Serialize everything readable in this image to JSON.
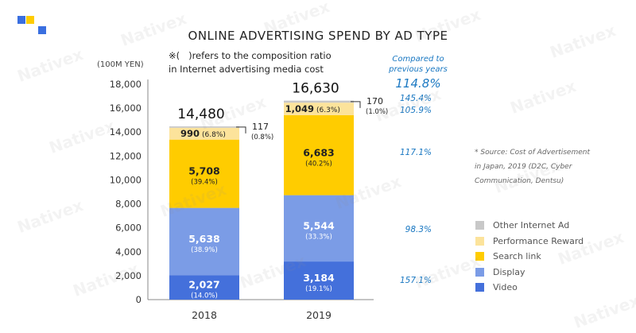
{
  "watermark": "Nativex",
  "chart_data": {
    "type": "bar",
    "stacked": true,
    "title": "ONLINE ADVERTISING SPEND BY AD TYPE",
    "ylabel": "(100M YEN)",
    "ylim": [
      0,
      18000
    ],
    "y_ticks": [
      "0",
      "2,000",
      "4,000",
      "6,000",
      "8,000",
      "10,000",
      "12,000",
      "14,000",
      "16,000",
      "18,000"
    ],
    "categories": [
      "2018",
      "2019"
    ],
    "totals": [
      "14,480",
      "16,630"
    ],
    "note_lines": [
      "※(   )refers to the composition ratio",
      "in Internet advertising media cost"
    ],
    "series": [
      {
        "name": "Video",
        "color": "#4470db",
        "text_color": "#ffffff",
        "values": [
          2027,
          3184
        ],
        "value_labels": [
          "2,027",
          "3,184"
        ],
        "pct_labels": [
          "(14.0%)",
          "(19.1%)"
        ],
        "growth": "157.1%"
      },
      {
        "name": "Display",
        "color": "#7b9ce6",
        "text_color": "#ffffff",
        "values": [
          5638,
          5544
        ],
        "value_labels": [
          "5,638",
          "5,544"
        ],
        "pct_labels": [
          "(38.9%)",
          "(33.3%)"
        ],
        "growth": "98.3%"
      },
      {
        "name": "Search link",
        "color": "#ffcc00",
        "text_color": "#222222",
        "values": [
          5708,
          6683
        ],
        "value_labels": [
          "5,708",
          "6,683"
        ],
        "pct_labels": [
          "(39.4%)",
          "(40.2%)"
        ],
        "growth": "117.1%"
      },
      {
        "name": "Performance Reward",
        "color": "#fce39b",
        "text_color": "#222222",
        "values": [
          990,
          1049
        ],
        "value_labels": [
          "990",
          "1,049"
        ],
        "pct_labels": [
          "(6.8%)",
          "(6.3%)"
        ],
        "growth": "105.9%"
      },
      {
        "name": "Other Internet Ad",
        "color": "#c8c8c8",
        "text_color": "#222222",
        "values": [
          117,
          170
        ],
        "value_labels": [
          "117",
          "170"
        ],
        "pct_labels": [
          "(0.8%)",
          "(1.0%)"
        ],
        "growth": "145.4%"
      }
    ],
    "comparison": {
      "heading_line1": "Compared to",
      "heading_line2": "previous years",
      "total_growth": "114.8%"
    },
    "source_lines": [
      "* Source: Cost of Advertisement",
      "in Japan, 2019 (D2C, Cyber",
      "Communication, Dentsu)"
    ],
    "legend_placement": "right",
    "legend_order": [
      "Other Internet Ad",
      "Performance Reward",
      "Search link",
      "Display",
      "Video"
    ],
    "grid": false
  }
}
